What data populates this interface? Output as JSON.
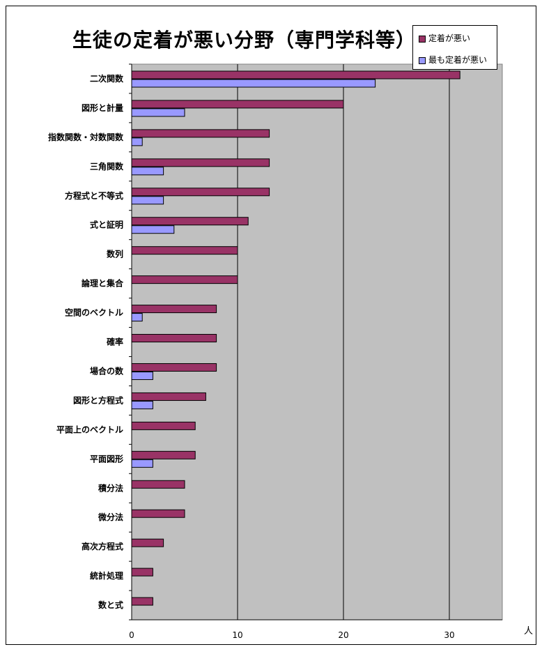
{
  "title": "生徒の定着が悪い分野（専門学科等）",
  "chart_data": {
    "type": "bar",
    "orientation": "horizontal",
    "title": "生徒の定着が悪い分野（専門学科等）",
    "xlabel": "人",
    "ylabel": "",
    "xlim": [
      0,
      35
    ],
    "xticks": [
      0,
      10,
      20,
      30
    ],
    "grid": true,
    "legend_position": "top-right",
    "categories": [
      "二次関数",
      "図形と計量",
      "指数関数・対数関数",
      "三角関数",
      "方程式と不等式",
      "式と証明",
      "数列",
      "論理と集合",
      "空間のベクトル",
      "確率",
      "場合の数",
      "図形と方程式",
      "平面上のベクトル",
      "平面図形",
      "積分法",
      "微分法",
      "高次方程式",
      "統計処理",
      "数と式"
    ],
    "series": [
      {
        "name": "定着が悪い",
        "color": "#993366",
        "values": [
          31,
          20,
          13,
          13,
          13,
          11,
          10,
          10,
          8,
          8,
          8,
          7,
          6,
          6,
          5,
          5,
          3,
          2,
          2
        ]
      },
      {
        "name": "最も定着が悪い",
        "color": "#9999ff",
        "values": [
          23,
          5,
          1,
          3,
          3,
          4,
          0,
          0,
          1,
          0,
          2,
          2,
          0,
          2,
          0,
          0,
          0,
          0,
          0
        ]
      }
    ],
    "plot_background": "#c0c0c0"
  }
}
